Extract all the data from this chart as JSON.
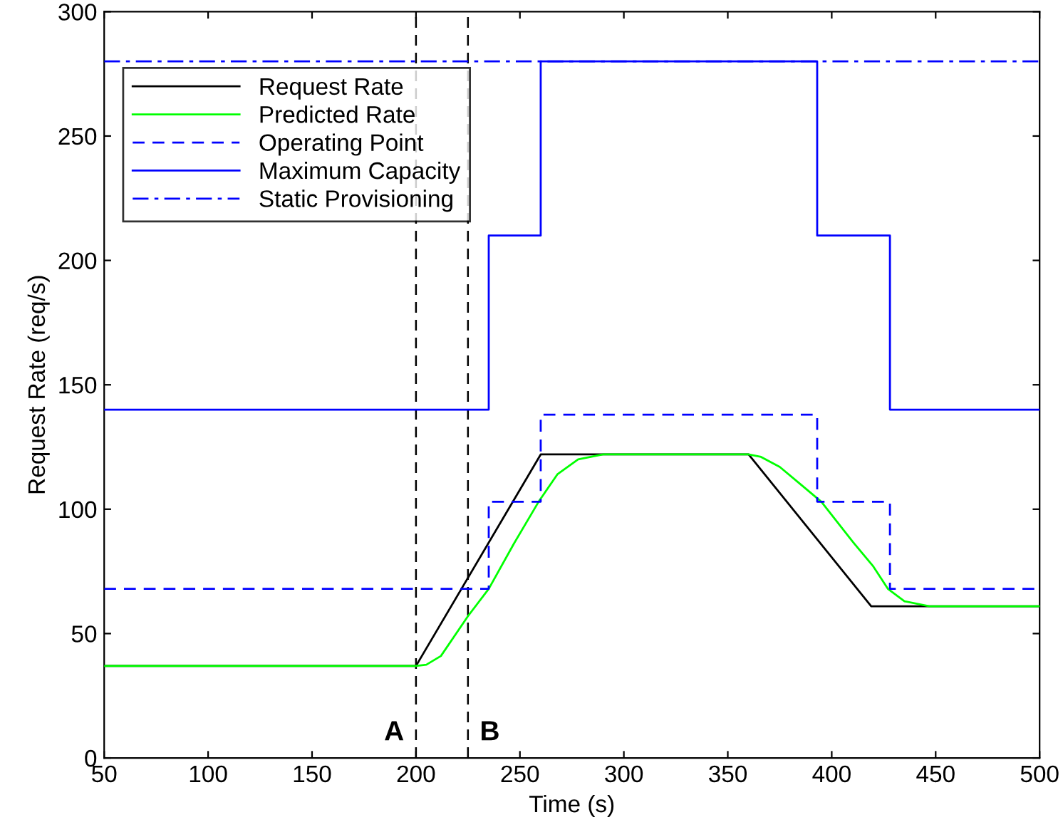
{
  "chart_data": {
    "type": "line",
    "xlabel": "Time (s)",
    "ylabel": "Request Rate (req/s)",
    "xlim": [
      50,
      500
    ],
    "ylim": [
      0,
      300
    ],
    "xticks": [
      50,
      100,
      150,
      200,
      250,
      300,
      350,
      400,
      450,
      500
    ],
    "yticks": [
      0,
      50,
      100,
      150,
      200,
      250,
      300
    ],
    "grid": false,
    "legend": "top left",
    "marker": "none",
    "series": [
      {
        "name": "Request Rate",
        "color": "#000000",
        "line_style": "solid",
        "x": [
          50,
          200,
          260,
          360,
          419,
          500
        ],
        "values": [
          37,
          37,
          122,
          122,
          61,
          61
        ]
      },
      {
        "name": "Predicted Rate",
        "color": "#00ff00",
        "line_style": "solid",
        "x": [
          50,
          200,
          205,
          212,
          225,
          235,
          247,
          259,
          268,
          278,
          290,
          360,
          366,
          375,
          385,
          395,
          410,
          420,
          427,
          435,
          447,
          500
        ],
        "values": [
          37,
          37,
          37.5,
          41,
          57,
          68,
          86,
          103,
          114,
          120,
          122,
          122,
          121,
          117,
          110,
          103,
          87,
          77,
          68,
          63,
          61,
          61
        ]
      },
      {
        "name": "Operating Point",
        "color": "#0000ff",
        "line_style": "dashed",
        "x": [
          50,
          235,
          235,
          260,
          260,
          393,
          393,
          428,
          428,
          500
        ],
        "values": [
          68,
          68,
          103,
          103,
          138,
          138,
          103,
          103,
          68,
          68
        ]
      },
      {
        "name": "Maximum Capacity",
        "color": "#0000ff",
        "line_style": "solid",
        "x": [
          50,
          235,
          235,
          260,
          260,
          393,
          393,
          428,
          428,
          500
        ],
        "values": [
          140,
          140,
          210,
          210,
          280,
          280,
          210,
          210,
          140,
          140
        ]
      },
      {
        "name": "Static Provisioning",
        "color": "#0000ff",
        "line_style": "dashdot",
        "x": [
          50,
          500
        ],
        "values": [
          280,
          280
        ]
      }
    ],
    "ref_lines": [
      {
        "axis": "x",
        "value": 200,
        "label": "A",
        "color": "#000000",
        "line_style": "dashed"
      },
      {
        "axis": "x",
        "value": 225,
        "label": "B",
        "color": "#000000",
        "line_style": "dashed"
      }
    ]
  }
}
